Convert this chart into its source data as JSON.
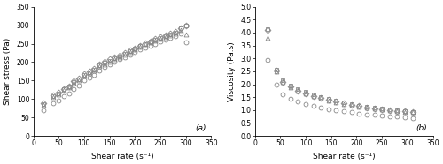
{
  "panel_a": {
    "title": "(a)",
    "xlabel": "Shear rate (s⁻¹)",
    "ylabel": "Shear stress (Pa)",
    "xlim": [
      0,
      350
    ],
    "ylim": [
      0,
      350
    ],
    "xticks": [
      0,
      50,
      100,
      150,
      200,
      250,
      300,
      350
    ],
    "yticks": [
      0,
      50,
      100,
      150,
      200,
      250,
      300,
      350
    ],
    "series": {
      "diamond_20C": {
        "x": [
          20,
          40,
          50,
          60,
          70,
          80,
          90,
          100,
          110,
          120,
          130,
          140,
          150,
          160,
          170,
          180,
          190,
          200,
          210,
          220,
          230,
          240,
          250,
          260,
          270,
          280,
          290,
          300
        ],
        "y": [
          88,
          110,
          118,
          128,
          135,
          148,
          155,
          168,
          175,
          182,
          193,
          200,
          207,
          213,
          218,
          225,
          232,
          238,
          245,
          252,
          257,
          262,
          268,
          273,
          278,
          283,
          293,
          300
        ]
      },
      "square_30C": {
        "x": [
          20,
          40,
          50,
          60,
          70,
          80,
          90,
          100,
          110,
          120,
          130,
          140,
          150,
          160,
          170,
          180,
          190,
          200,
          210,
          220,
          230,
          240,
          250,
          260,
          270,
          280,
          290,
          300
        ],
        "y": [
          86,
          108,
          116,
          126,
          133,
          146,
          153,
          166,
          173,
          180,
          191,
          198,
          204,
          211,
          216,
          222,
          230,
          236,
          243,
          250,
          255,
          260,
          265,
          270,
          276,
          281,
          291,
          298
        ]
      },
      "triangle_40C": {
        "x": [
          20,
          40,
          50,
          60,
          70,
          80,
          90,
          100,
          110,
          120,
          130,
          140,
          150,
          160,
          170,
          180,
          190,
          200,
          210,
          220,
          230,
          240,
          250,
          260,
          270,
          280,
          290,
          300
        ],
        "y": [
          84,
          106,
          113,
          124,
          131,
          143,
          150,
          163,
          170,
          177,
          188,
          195,
          201,
          208,
          214,
          220,
          227,
          234,
          241,
          248,
          253,
          258,
          263,
          268,
          273,
          278,
          288,
          275
        ]
      },
      "circle_50C": {
        "x": [
          20,
          40,
          50,
          60,
          70,
          80,
          90,
          100,
          110,
          120,
          130,
          140,
          150,
          160,
          170,
          180,
          190,
          200,
          210,
          220,
          230,
          240,
          250,
          260,
          270,
          280,
          290,
          300
        ],
        "y": [
          70,
          88,
          96,
          107,
          115,
          128,
          136,
          150,
          158,
          166,
          178,
          186,
          193,
          200,
          207,
          213,
          220,
          227,
          234,
          240,
          245,
          250,
          255,
          260,
          265,
          270,
          278,
          254
        ]
      }
    }
  },
  "panel_b": {
    "title": "(b)",
    "xlabel": "Shear rate (s⁻¹)",
    "ylabel": "Viscosity (Pa.s)",
    "xlim": [
      0,
      350
    ],
    "ylim": [
      0.0,
      5.0
    ],
    "xticks": [
      0,
      50,
      100,
      150,
      200,
      250,
      300,
      350
    ],
    "yticks": [
      0.0,
      0.5,
      1.0,
      1.5,
      2.0,
      2.5,
      3.0,
      3.5,
      4.0,
      4.5,
      5.0
    ],
    "series": {
      "diamond_20C": {
        "x": [
          25,
          42,
          55,
          70,
          85,
          100,
          115,
          130,
          145,
          160,
          175,
          190,
          205,
          220,
          235,
          250,
          265,
          280,
          295,
          310
        ],
        "y": [
          4.1,
          2.52,
          2.1,
          1.9,
          1.75,
          1.65,
          1.55,
          1.48,
          1.4,
          1.32,
          1.26,
          1.2,
          1.15,
          1.1,
          1.07,
          1.03,
          1.0,
          0.97,
          0.95,
          0.92
        ]
      },
      "square_30C": {
        "x": [
          25,
          42,
          55,
          70,
          85,
          100,
          115,
          130,
          145,
          160,
          175,
          190,
          205,
          220,
          235,
          250,
          265,
          280,
          295,
          310
        ],
        "y": [
          4.15,
          2.58,
          2.15,
          1.95,
          1.8,
          1.7,
          1.6,
          1.52,
          1.44,
          1.36,
          1.3,
          1.24,
          1.18,
          1.13,
          1.1,
          1.06,
          1.02,
          0.99,
          0.97,
          0.94
        ]
      },
      "triangle_40C": {
        "x": [
          25,
          42,
          55,
          70,
          85,
          100,
          115,
          130,
          145,
          160,
          175,
          190,
          205,
          220,
          235,
          250,
          265,
          280,
          295,
          310
        ],
        "y": [
          3.8,
          2.5,
          2.08,
          1.88,
          1.73,
          1.63,
          1.53,
          1.46,
          1.38,
          1.31,
          1.25,
          1.19,
          1.14,
          1.09,
          1.06,
          1.02,
          0.99,
          0.96,
          0.94,
          0.91
        ]
      },
      "circle_50C": {
        "x": [
          25,
          42,
          55,
          70,
          85,
          100,
          115,
          130,
          145,
          160,
          175,
          190,
          205,
          220,
          235,
          250,
          265,
          280,
          295,
          310
        ],
        "y": [
          2.95,
          2.0,
          1.62,
          1.45,
          1.32,
          1.24,
          1.16,
          1.1,
          1.04,
          0.99,
          0.95,
          0.91,
          0.87,
          0.84,
          0.81,
          0.78,
          0.76,
          0.74,
          0.72,
          0.7
        ]
      }
    }
  },
  "marker_styles": {
    "diamond_20C": {
      "marker": "D",
      "color": "#888888",
      "facecolor": "none",
      "markersize": 3.5
    },
    "square_30C": {
      "marker": "s",
      "color": "#888888",
      "facecolor": "none",
      "markersize": 3.5
    },
    "triangle_40C": {
      "marker": "^",
      "color": "#888888",
      "facecolor": "none",
      "markersize": 3.5
    },
    "circle_50C": {
      "marker": "o",
      "color": "#888888",
      "facecolor": "none",
      "markersize": 3.5
    }
  },
  "background_color": "#ffffff",
  "font_size": 6.5
}
